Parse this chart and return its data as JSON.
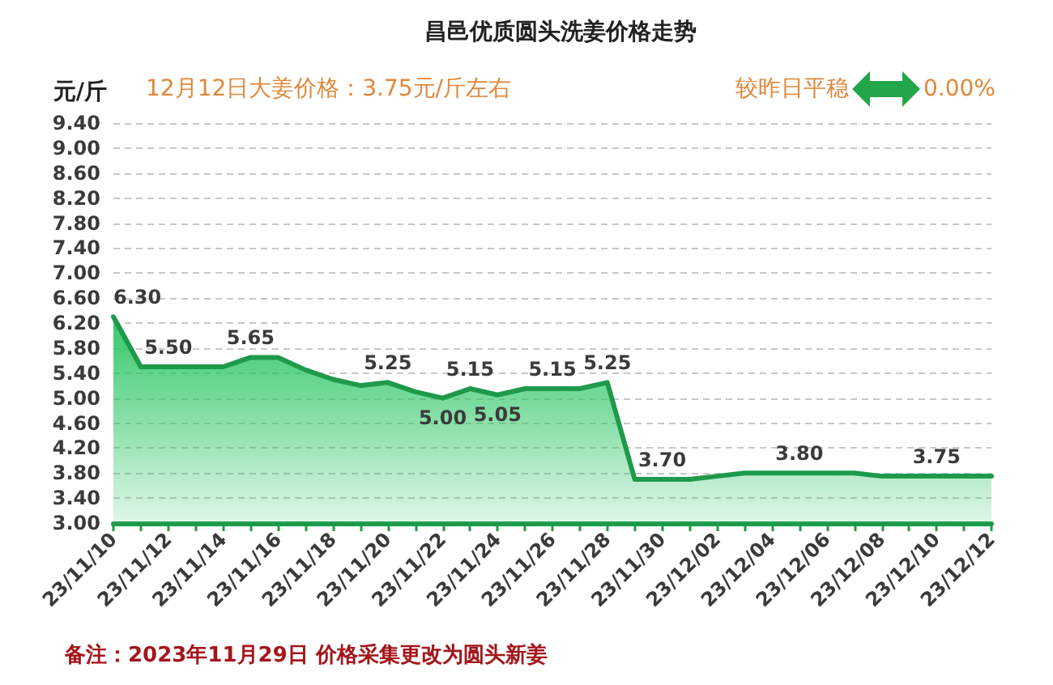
{
  "chart_data": {
    "type": "area",
    "title": "昌邑优质圆头洗姜价格走势",
    "ylabel": "元/斤",
    "annotations": [
      "12月12日大姜价格：3.75元/斤左右",
      "较昨日平稳",
      "0.00%",
      "备注：2023年11月29日 价格采集更改为圆头新姜"
    ],
    "categories": [
      "23/11/10",
      null,
      "23/11/12",
      null,
      "23/11/14",
      null,
      "23/11/16",
      null,
      "23/11/18",
      null,
      "23/11/20",
      null,
      "23/11/22",
      null,
      "23/11/24",
      null,
      "23/11/26",
      null,
      "23/11/28",
      null,
      "23/11/30",
      null,
      "23/12/02",
      null,
      "23/12/04",
      null,
      "23/12/06",
      null,
      "23/12/08",
      null,
      "23/12/10",
      null,
      "23/12/12"
    ],
    "values": [
      6.3,
      5.5,
      5.5,
      5.5,
      5.5,
      5.65,
      5.65,
      5.45,
      5.3,
      5.2,
      5.25,
      5.1,
      5.0,
      5.15,
      5.05,
      5.15,
      5.15,
      5.15,
      5.25,
      3.7,
      3.7,
      3.7,
      3.75,
      3.8,
      3.8,
      3.8,
      3.8,
      3.8,
      3.75,
      3.75,
      3.75,
      3.75,
      3.75
    ],
    "value_labels": [
      "6.30",
      null,
      "5.50",
      null,
      null,
      "5.65",
      null,
      null,
      null,
      null,
      "5.25",
      null,
      "5.00",
      "5.15",
      "5.05",
      null,
      "5.15",
      null,
      "5.25",
      null,
      "3.70",
      null,
      null,
      null,
      null,
      "3.80",
      null,
      null,
      null,
      null,
      "3.75",
      null,
      null
    ],
    "color": "#1f9a4b",
    "ylim": [
      3,
      9.4
    ],
    "yticks": [
      {
        "value": 3,
        "label": "3.00"
      },
      {
        "value": 3.4,
        "label": "3.40"
      },
      {
        "value": 3.8,
        "label": "3.80"
      },
      {
        "value": 4.2,
        "label": "4.20"
      },
      {
        "value": 4.6,
        "label": "4.60"
      },
      {
        "value": 5,
        "label": "5.00"
      },
      {
        "value": 5.4,
        "label": "5.40"
      },
      {
        "value": 5.8,
        "label": "5.80"
      },
      {
        "value": 6.2,
        "label": "6.20"
      },
      {
        "value": 6.6,
        "label": "6.60"
      },
      {
        "value": 7,
        "label": "7.00"
      },
      {
        "value": 7.4,
        "label": "7.40"
      },
      {
        "value": 7.8,
        "label": "7.80"
      },
      {
        "value": 8.2,
        "label": "8.20"
      },
      {
        "value": 8.6,
        "label": "8.60"
      },
      {
        "value": 9,
        "label": "9.00"
      },
      {
        "value": 9.4,
        "label": "9.40"
      }
    ],
    "grid": "y"
  }
}
